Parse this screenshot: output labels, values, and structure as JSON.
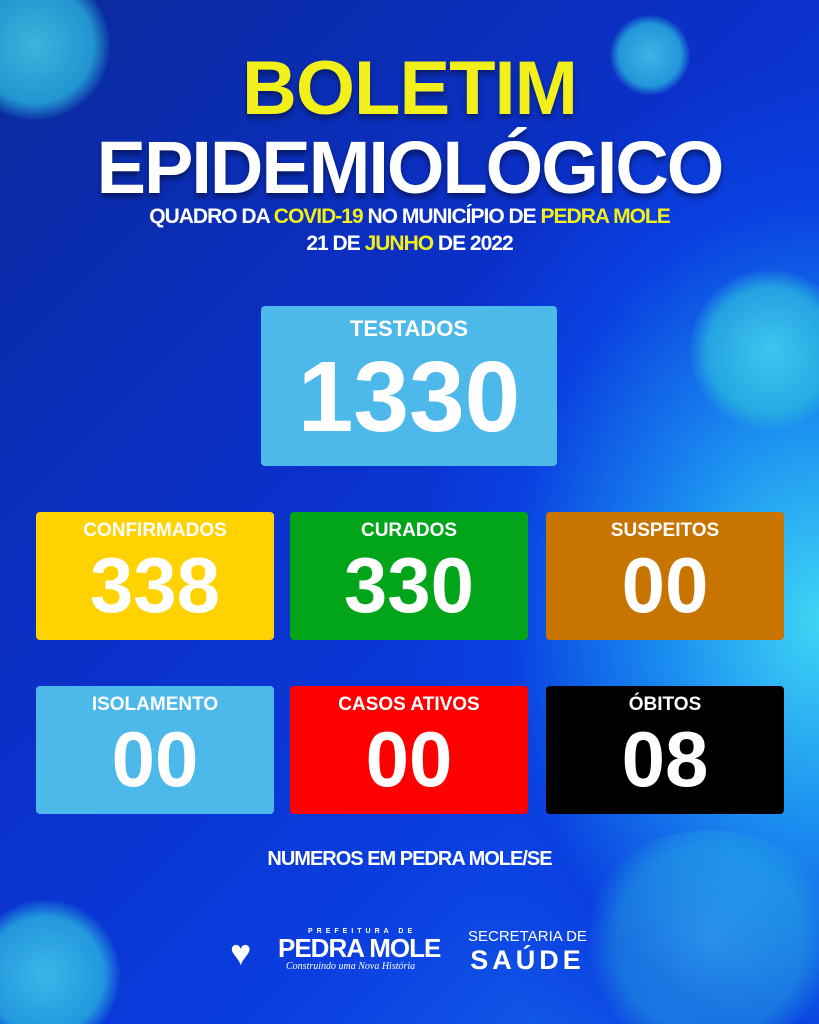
{
  "header": {
    "title_line1": "BOLETIM",
    "title_line2": "EPIDEMIOLÓGICO",
    "subtitle_parts": [
      "QUADRO DA ",
      "COVID-19",
      " NO MUNICÍPIO DE ",
      "PEDRA MOLE"
    ],
    "date_parts": [
      "21 DE ",
      "JUNHO",
      " DE 2022"
    ]
  },
  "stats": {
    "testados": {
      "label": "TESTADOS",
      "value": "1330",
      "color": "#4db8ea"
    },
    "confirmados": {
      "label": "CONFIRMADOS",
      "value": "338",
      "color": "#ffd200"
    },
    "curados": {
      "label": "CURADOS",
      "value": "330",
      "color": "#02a51a"
    },
    "suspeitos": {
      "label": "SUSPEITOS",
      "value": "00",
      "color": "#c87400"
    },
    "isolamento": {
      "label": "ISOLAMENTO",
      "value": "00",
      "color": "#4db8ea"
    },
    "casos_ativos": {
      "label": "CASOS ATIVOS",
      "value": "00",
      "color": "#ff0000"
    },
    "obitos": {
      "label": "ÓBITOS",
      "value": "08",
      "color": "#000000"
    }
  },
  "footer": {
    "note": "NUMEROS EM PEDRA MOLE/SE",
    "logo_prefeitura": {
      "top": "PREFEITURA DE",
      "name": "PEDRA MOLE",
      "slogan": "Construindo uma Nova História"
    },
    "logo_secretaria": {
      "line1": "SECRETARIA DE",
      "line2": "SAÚDE"
    }
  }
}
